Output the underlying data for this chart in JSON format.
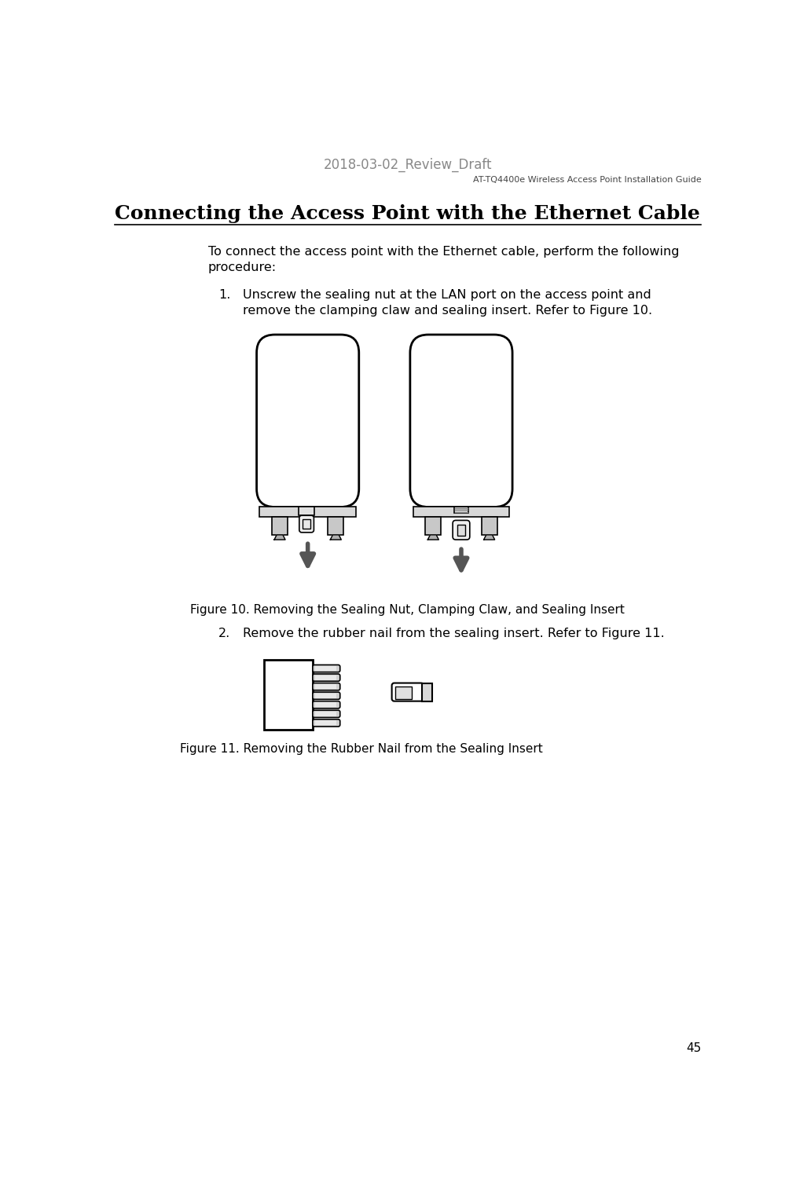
{
  "page_title_top": "2018-03-02_Review_Draft",
  "page_subtitle_right": "AT-TQ4400e Wireless Access Point Installation Guide",
  "section_title": "Connecting the Access Point with the Ethernet Cable",
  "intro_text": "To connect the access point with the Ethernet cable, perform the following\nprocedure:",
  "step1_num": "1.",
  "step1_body": "Unscrew the sealing nut at the LAN port on the access point and\nremove the clamping claw and sealing insert. Refer to Figure 10.",
  "figure10_caption": "Figure 10. Removing the Sealing Nut, Clamping Claw, and Sealing Insert",
  "step2_num": "2.",
  "step2_body": "Remove the rubber nail from the sealing insert. Refer to Figure 11.",
  "figure11_caption": "Figure 11. Removing the Rubber Nail from the Sealing Insert",
  "page_number": "45",
  "bg_color": "#ffffff",
  "text_color": "#000000"
}
